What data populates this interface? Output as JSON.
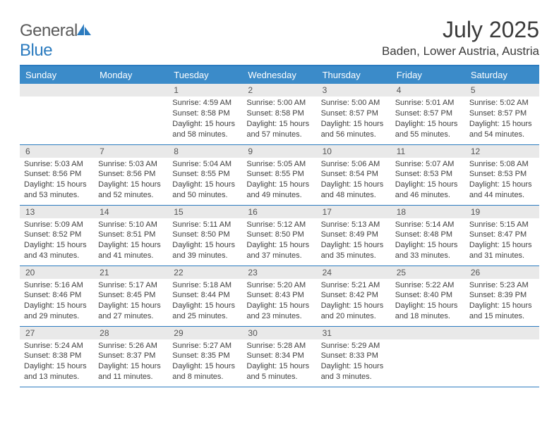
{
  "logo": {
    "word1": "General",
    "word2": "Blue"
  },
  "title": "July 2025",
  "location": "Baden, Lower Austria, Austria",
  "colors": {
    "accent": "#3b8bc9",
    "rule": "#2b7bbf",
    "daynum_bg": "#e9e9e9",
    "text": "#333333"
  },
  "weekdays": [
    "Sunday",
    "Monday",
    "Tuesday",
    "Wednesday",
    "Thursday",
    "Friday",
    "Saturday"
  ],
  "weeks": [
    [
      null,
      null,
      {
        "n": "1",
        "sr": "Sunrise: 4:59 AM",
        "ss": "Sunset: 8:58 PM",
        "dl": "Daylight: 15 hours and 58 minutes."
      },
      {
        "n": "2",
        "sr": "Sunrise: 5:00 AM",
        "ss": "Sunset: 8:58 PM",
        "dl": "Daylight: 15 hours and 57 minutes."
      },
      {
        "n": "3",
        "sr": "Sunrise: 5:00 AM",
        "ss": "Sunset: 8:57 PM",
        "dl": "Daylight: 15 hours and 56 minutes."
      },
      {
        "n": "4",
        "sr": "Sunrise: 5:01 AM",
        "ss": "Sunset: 8:57 PM",
        "dl": "Daylight: 15 hours and 55 minutes."
      },
      {
        "n": "5",
        "sr": "Sunrise: 5:02 AM",
        "ss": "Sunset: 8:57 PM",
        "dl": "Daylight: 15 hours and 54 minutes."
      }
    ],
    [
      {
        "n": "6",
        "sr": "Sunrise: 5:03 AM",
        "ss": "Sunset: 8:56 PM",
        "dl": "Daylight: 15 hours and 53 minutes."
      },
      {
        "n": "7",
        "sr": "Sunrise: 5:03 AM",
        "ss": "Sunset: 8:56 PM",
        "dl": "Daylight: 15 hours and 52 minutes."
      },
      {
        "n": "8",
        "sr": "Sunrise: 5:04 AM",
        "ss": "Sunset: 8:55 PM",
        "dl": "Daylight: 15 hours and 50 minutes."
      },
      {
        "n": "9",
        "sr": "Sunrise: 5:05 AM",
        "ss": "Sunset: 8:55 PM",
        "dl": "Daylight: 15 hours and 49 minutes."
      },
      {
        "n": "10",
        "sr": "Sunrise: 5:06 AM",
        "ss": "Sunset: 8:54 PM",
        "dl": "Daylight: 15 hours and 48 minutes."
      },
      {
        "n": "11",
        "sr": "Sunrise: 5:07 AM",
        "ss": "Sunset: 8:53 PM",
        "dl": "Daylight: 15 hours and 46 minutes."
      },
      {
        "n": "12",
        "sr": "Sunrise: 5:08 AM",
        "ss": "Sunset: 8:53 PM",
        "dl": "Daylight: 15 hours and 44 minutes."
      }
    ],
    [
      {
        "n": "13",
        "sr": "Sunrise: 5:09 AM",
        "ss": "Sunset: 8:52 PM",
        "dl": "Daylight: 15 hours and 43 minutes."
      },
      {
        "n": "14",
        "sr": "Sunrise: 5:10 AM",
        "ss": "Sunset: 8:51 PM",
        "dl": "Daylight: 15 hours and 41 minutes."
      },
      {
        "n": "15",
        "sr": "Sunrise: 5:11 AM",
        "ss": "Sunset: 8:50 PM",
        "dl": "Daylight: 15 hours and 39 minutes."
      },
      {
        "n": "16",
        "sr": "Sunrise: 5:12 AM",
        "ss": "Sunset: 8:50 PM",
        "dl": "Daylight: 15 hours and 37 minutes."
      },
      {
        "n": "17",
        "sr": "Sunrise: 5:13 AM",
        "ss": "Sunset: 8:49 PM",
        "dl": "Daylight: 15 hours and 35 minutes."
      },
      {
        "n": "18",
        "sr": "Sunrise: 5:14 AM",
        "ss": "Sunset: 8:48 PM",
        "dl": "Daylight: 15 hours and 33 minutes."
      },
      {
        "n": "19",
        "sr": "Sunrise: 5:15 AM",
        "ss": "Sunset: 8:47 PM",
        "dl": "Daylight: 15 hours and 31 minutes."
      }
    ],
    [
      {
        "n": "20",
        "sr": "Sunrise: 5:16 AM",
        "ss": "Sunset: 8:46 PM",
        "dl": "Daylight: 15 hours and 29 minutes."
      },
      {
        "n": "21",
        "sr": "Sunrise: 5:17 AM",
        "ss": "Sunset: 8:45 PM",
        "dl": "Daylight: 15 hours and 27 minutes."
      },
      {
        "n": "22",
        "sr": "Sunrise: 5:18 AM",
        "ss": "Sunset: 8:44 PM",
        "dl": "Daylight: 15 hours and 25 minutes."
      },
      {
        "n": "23",
        "sr": "Sunrise: 5:20 AM",
        "ss": "Sunset: 8:43 PM",
        "dl": "Daylight: 15 hours and 23 minutes."
      },
      {
        "n": "24",
        "sr": "Sunrise: 5:21 AM",
        "ss": "Sunset: 8:42 PM",
        "dl": "Daylight: 15 hours and 20 minutes."
      },
      {
        "n": "25",
        "sr": "Sunrise: 5:22 AM",
        "ss": "Sunset: 8:40 PM",
        "dl": "Daylight: 15 hours and 18 minutes."
      },
      {
        "n": "26",
        "sr": "Sunrise: 5:23 AM",
        "ss": "Sunset: 8:39 PM",
        "dl": "Daylight: 15 hours and 15 minutes."
      }
    ],
    [
      {
        "n": "27",
        "sr": "Sunrise: 5:24 AM",
        "ss": "Sunset: 8:38 PM",
        "dl": "Daylight: 15 hours and 13 minutes."
      },
      {
        "n": "28",
        "sr": "Sunrise: 5:26 AM",
        "ss": "Sunset: 8:37 PM",
        "dl": "Daylight: 15 hours and 11 minutes."
      },
      {
        "n": "29",
        "sr": "Sunrise: 5:27 AM",
        "ss": "Sunset: 8:35 PM",
        "dl": "Daylight: 15 hours and 8 minutes."
      },
      {
        "n": "30",
        "sr": "Sunrise: 5:28 AM",
        "ss": "Sunset: 8:34 PM",
        "dl": "Daylight: 15 hours and 5 minutes."
      },
      {
        "n": "31",
        "sr": "Sunrise: 5:29 AM",
        "ss": "Sunset: 8:33 PM",
        "dl": "Daylight: 15 hours and 3 minutes."
      },
      null,
      null
    ]
  ]
}
